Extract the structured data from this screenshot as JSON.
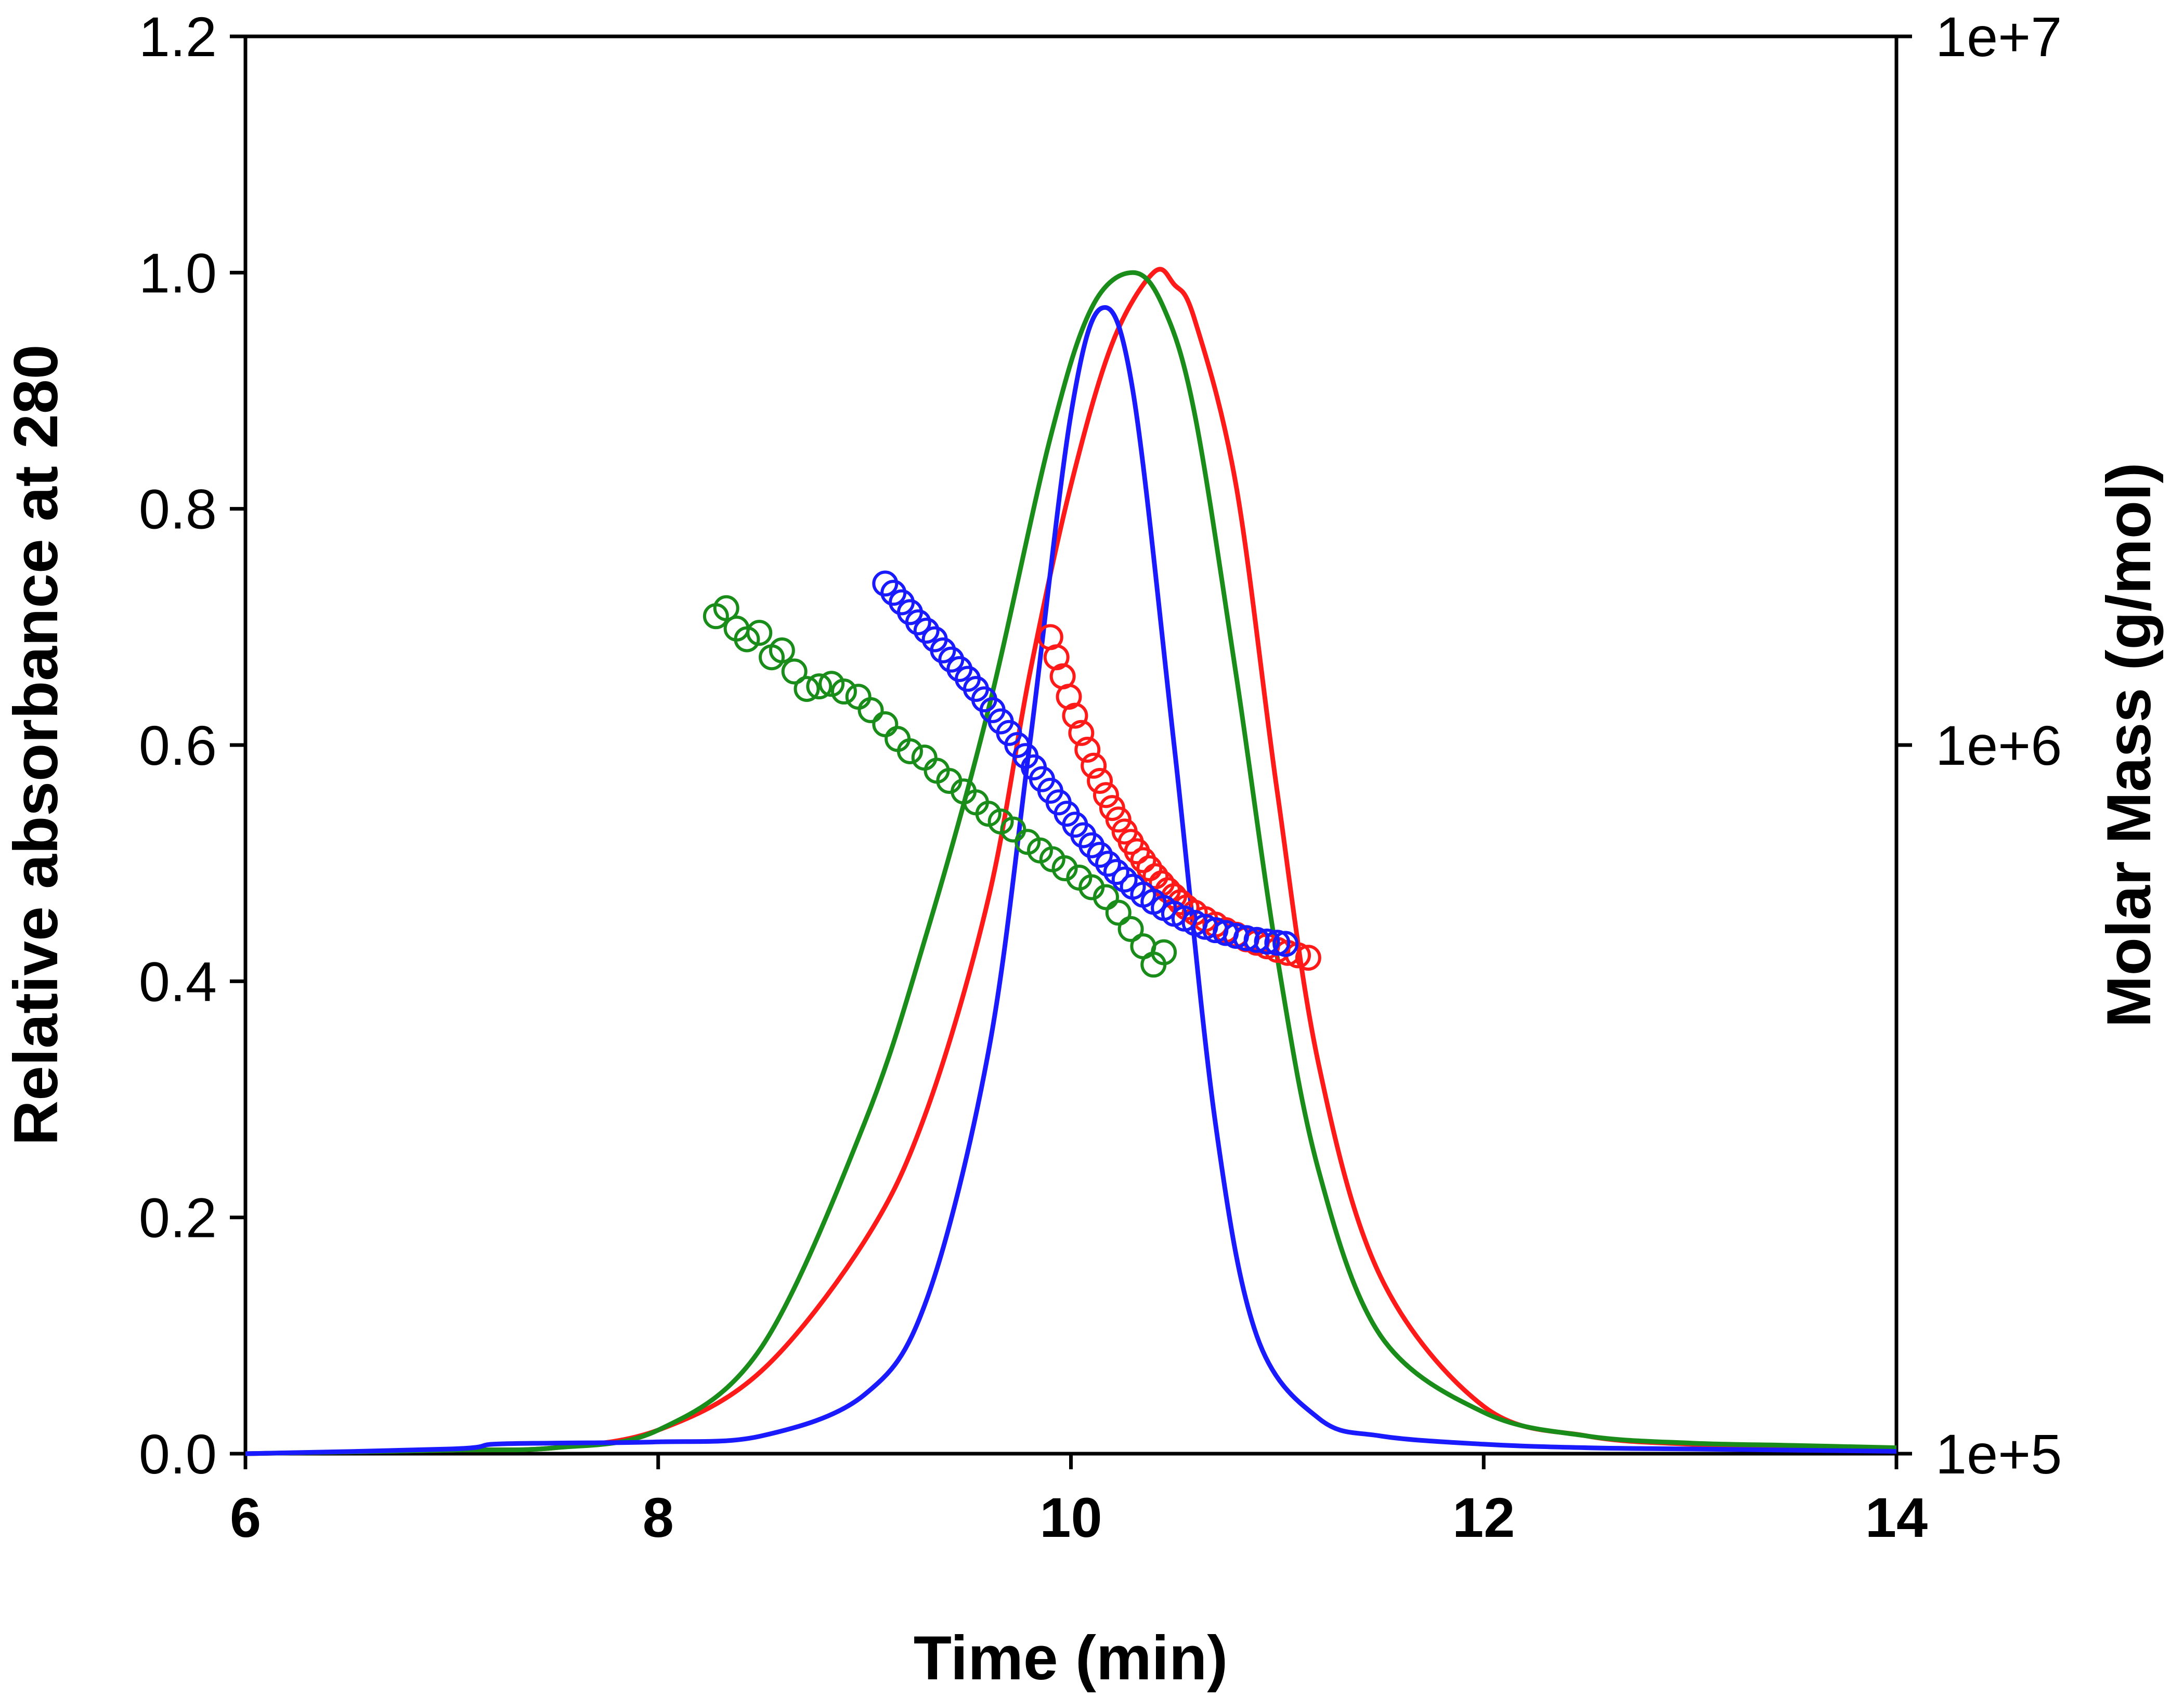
{
  "chart_data": {
    "type": "line",
    "xlabel": "Time (min)",
    "ylabel": "Relative absorbance at 280",
    "y2label": "Molar Mass (g/mol)",
    "xlim": [
      6,
      14
    ],
    "ylim": [
      0,
      1.2
    ],
    "y2lim": [
      100000,
      10000000
    ],
    "y2scale": "log",
    "x_ticks": [
      "6",
      "8",
      "10",
      "12",
      "14"
    ],
    "y_ticks": [
      "0.0",
      "0.2",
      "0.4",
      "0.6",
      "0.8",
      "1.0",
      "1.2"
    ],
    "y2_ticks": [
      "1e+5",
      "1e+6",
      "1e+7"
    ],
    "grid": false,
    "colors": {
      "red": "#ff1a1a",
      "green": "#1a8c1a",
      "blue": "#1a1aff"
    },
    "absorbance_series": [
      {
        "color": "#ff1a1a",
        "x": [
          6.0,
          7.0,
          7.5,
          8.0,
          8.5,
          9.0,
          9.3,
          9.6,
          9.8,
          10.0,
          10.2,
          10.4,
          10.5,
          10.6,
          10.8,
          11.0,
          11.2,
          11.5,
          12.0,
          12.5,
          13.0,
          13.5,
          14.0
        ],
        "y": [
          0.0,
          0.003,
          0.005,
          0.02,
          0.07,
          0.18,
          0.29,
          0.47,
          0.66,
          0.82,
          0.94,
          1.0,
          0.99,
          0.96,
          0.82,
          0.56,
          0.33,
          0.15,
          0.04,
          0.015,
          0.008,
          0.006,
          0.004
        ]
      },
      {
        "color": "#1a8c1a",
        "x": [
          6.0,
          7.0,
          7.5,
          8.0,
          8.5,
          9.0,
          9.3,
          9.6,
          9.9,
          10.1,
          10.3,
          10.45,
          10.6,
          10.8,
          11.0,
          11.2,
          11.5,
          12.0,
          12.5,
          13.0,
          13.5,
          14.0
        ],
        "y": [
          0.0,
          0.003,
          0.005,
          0.02,
          0.09,
          0.28,
          0.44,
          0.63,
          0.86,
          0.97,
          1.0,
          0.97,
          0.88,
          0.66,
          0.42,
          0.24,
          0.1,
          0.035,
          0.015,
          0.009,
          0.007,
          0.005
        ]
      },
      {
        "color": "#1a1aff",
        "x": [
          6.0,
          7.0,
          7.2,
          7.5,
          8.0,
          8.5,
          9.0,
          9.3,
          9.6,
          9.8,
          10.0,
          10.15,
          10.3,
          10.5,
          10.7,
          10.9,
          11.2,
          11.5,
          12.0,
          12.5,
          13.0,
          13.5,
          14.0
        ],
        "y": [
          0.0,
          0.004,
          0.008,
          0.009,
          0.01,
          0.015,
          0.05,
          0.13,
          0.34,
          0.6,
          0.88,
          0.97,
          0.9,
          0.6,
          0.28,
          0.1,
          0.03,
          0.015,
          0.008,
          0.005,
          0.004,
          0.003,
          0.002
        ]
      }
    ],
    "molar_mass_series": [
      {
        "color": "#1a8c1a",
        "x": [
          8.28,
          8.33,
          8.38,
          8.43,
          8.49,
          8.55,
          8.6,
          8.66,
          8.72,
          8.78,
          8.84,
          8.9,
          8.97,
          9.03,
          9.1,
          9.16,
          9.22,
          9.29,
          9.35,
          9.41,
          9.48,
          9.54,
          9.6,
          9.66,
          9.72,
          9.79,
          9.85,
          9.91,
          9.97,
          10.04,
          10.1,
          10.17,
          10.23,
          10.29,
          10.35,
          10.4,
          10.45
        ],
        "y": [
          1520000,
          1560000,
          1460000,
          1410000,
          1440000,
          1330000,
          1360000,
          1270000,
          1200000,
          1210000,
          1220000,
          1190000,
          1170000,
          1120000,
          1070000,
          1020000,
          980000,
          960000,
          920000,
          890000,
          860000,
          830000,
          800000,
          780000,
          760000,
          730000,
          710000,
          690000,
          670000,
          650000,
          630000,
          610000,
          580000,
          550000,
          520000,
          490000,
          510000
        ]
      },
      {
        "color": "#ff1a1a",
        "x": [
          9.9,
          9.93,
          9.96,
          9.99,
          10.02,
          10.05,
          10.08,
          10.11,
          10.14,
          10.17,
          10.2,
          10.23,
          10.26,
          10.29,
          10.32,
          10.35,
          10.38,
          10.41,
          10.44,
          10.47,
          10.5,
          10.53,
          10.56,
          10.6,
          10.65,
          10.7,
          10.75,
          10.8,
          10.85,
          10.9,
          10.95,
          11.0,
          11.05,
          11.1,
          11.15
        ],
        "y": [
          1420000,
          1330000,
          1250000,
          1170000,
          1100000,
          1040000,
          985000,
          935000,
          890000,
          850000,
          815000,
          785000,
          755000,
          730000,
          708000,
          688000,
          670000,
          653000,
          638000,
          624000,
          612000,
          600000,
          590000,
          580000,
          568000,
          558000,
          548000,
          540000,
          532000,
          526000,
          520000,
          514000,
          509000,
          505000,
          501000
        ]
      },
      {
        "color": "#1a1aff",
        "x": [
          9.1,
          9.14,
          9.18,
          9.22,
          9.26,
          9.3,
          9.34,
          9.38,
          9.42,
          9.46,
          9.5,
          9.54,
          9.58,
          9.62,
          9.66,
          9.7,
          9.74,
          9.78,
          9.82,
          9.86,
          9.9,
          9.94,
          9.98,
          10.02,
          10.06,
          10.1,
          10.14,
          10.18,
          10.22,
          10.26,
          10.3,
          10.35,
          10.4,
          10.45,
          10.5,
          10.55,
          10.6,
          10.65,
          10.7,
          10.75,
          10.8,
          10.85,
          10.9,
          10.95,
          11.0,
          11.04
        ],
        "y": [
          1690000,
          1640000,
          1590000,
          1540000,
          1490000,
          1450000,
          1410000,
          1360000,
          1320000,
          1280000,
          1240000,
          1200000,
          1160000,
          1120000,
          1080000,
          1040000,
          1000000,
          965000,
          930000,
          895000,
          862000,
          830000,
          800000,
          772000,
          746000,
          722000,
          700000,
          680000,
          662000,
          646000,
          631000,
          615000,
          601000,
          589000,
          578000,
          569000,
          561000,
          554000,
          548000,
          543000,
          538000,
          534000,
          531000,
          528000,
          526000,
          524000
        ]
      }
    ]
  }
}
